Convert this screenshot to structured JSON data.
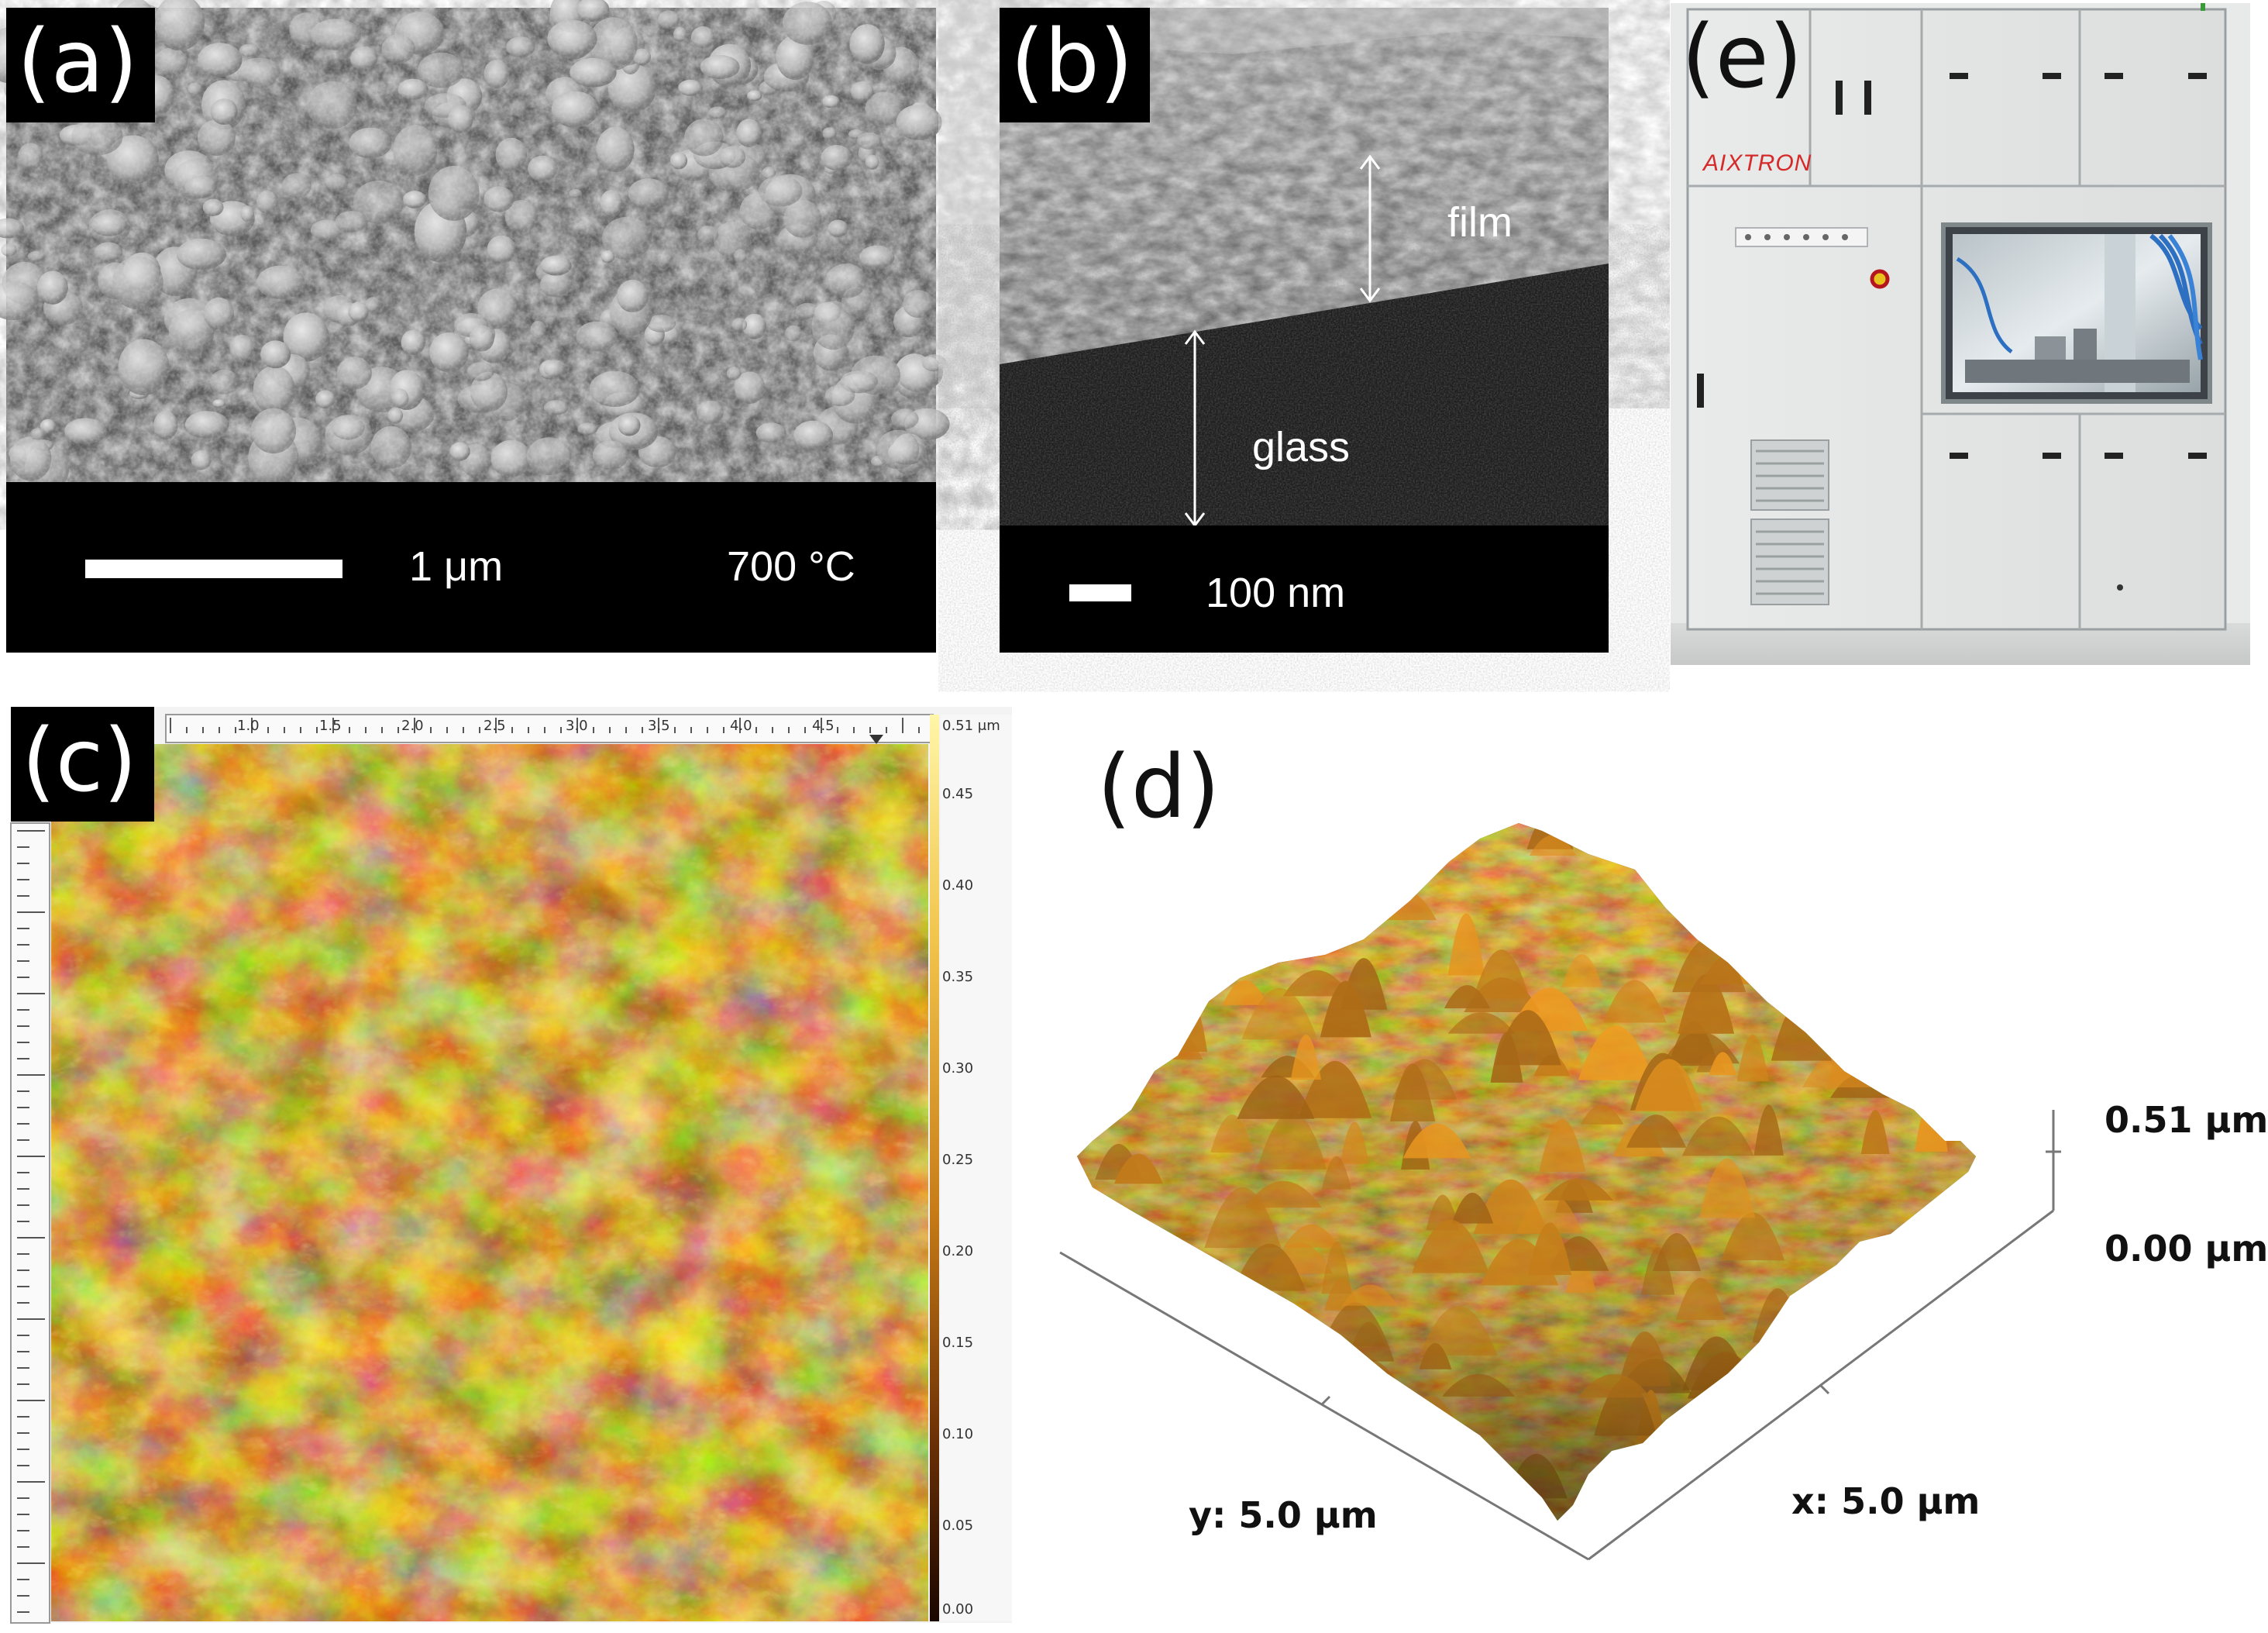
{
  "panels": {
    "a": {
      "label": "(a)",
      "scale_text": "1 μm",
      "temp_text": "700 °C"
    },
    "b": {
      "label": "(b)",
      "film_text": "film",
      "glass_text": "glass",
      "scale_text": "100 nm"
    },
    "c": {
      "label": "(c)",
      "top_ticks": [
        "1.0",
        "1.5",
        "2.0",
        "2.5",
        "3.0",
        "3.5",
        "4.0",
        "4.5"
      ],
      "colorbar_ticks": [
        "0.51 μm",
        "0.45",
        "0.40",
        "0.35",
        "0.30",
        "0.25",
        "0.20",
        "0.15",
        "0.10",
        "0.05",
        "0.00"
      ]
    },
    "d": {
      "label": "(d)",
      "z_top": "0.51 μm",
      "z_bottom": "0.00 μm",
      "y_axis": "y: 5.0 μm",
      "x_axis": "x: 5.0 μm"
    },
    "e": {
      "label": "(e)",
      "brand": "AIXTRON"
    }
  },
  "colors": {
    "sem_gray": "#8a8a8a",
    "afm_gold": "#e0a23a",
    "afm_dark": "#5a2d05"
  }
}
